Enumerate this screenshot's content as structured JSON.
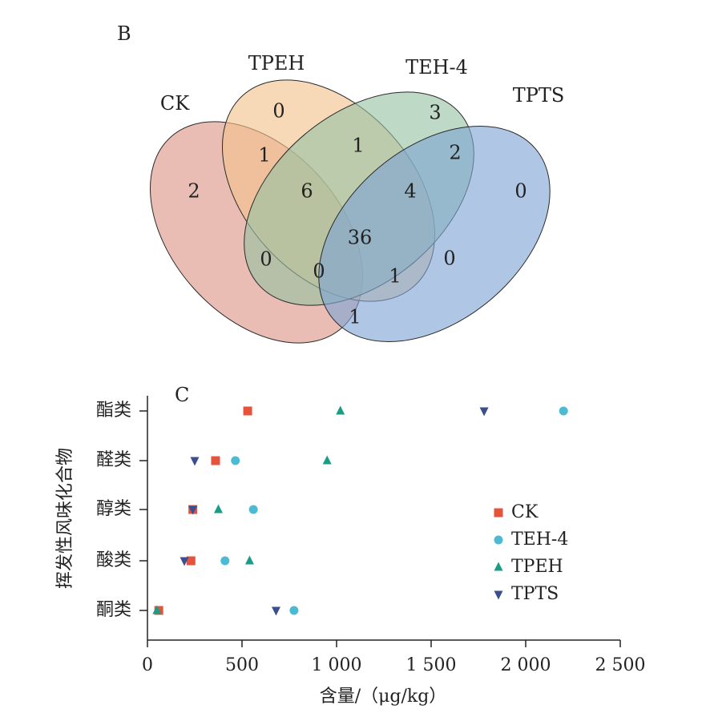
{
  "chart_data": [
    {
      "type": "venn",
      "panel_label": "B",
      "sets": [
        {
          "name": "CK",
          "color": "#dc9486"
        },
        {
          "name": "TPEH",
          "color": "#f2c28c"
        },
        {
          "name": "TEH-4",
          "color": "#96c1a3"
        },
        {
          "name": "TPTS",
          "color": "#7ea4d3"
        }
      ],
      "regions": [
        {
          "sets": [
            "CK"
          ],
          "value": "2"
        },
        {
          "sets": [
            "TPEH"
          ],
          "value": "0"
        },
        {
          "sets": [
            "TEH-4"
          ],
          "value": "3"
        },
        {
          "sets": [
            "TPTS"
          ],
          "value": "0"
        },
        {
          "sets": [
            "CK",
            "TPEH"
          ],
          "value": "1"
        },
        {
          "sets": [
            "TPEH",
            "TEH-4"
          ],
          "value": "1"
        },
        {
          "sets": [
            "TEH-4",
            "TPTS"
          ],
          "value": "2"
        },
        {
          "sets": [
            "CK",
            "TEH-4"
          ],
          "value": "0"
        },
        {
          "sets": [
            "TPEH",
            "TPTS"
          ],
          "value": "0"
        },
        {
          "sets": [
            "CK",
            "TPTS"
          ],
          "value": "1"
        },
        {
          "sets": [
            "CK",
            "TPEH",
            "TEH-4"
          ],
          "value": "6"
        },
        {
          "sets": [
            "TPEH",
            "TEH-4",
            "TPTS"
          ],
          "value": "4"
        },
        {
          "sets": [
            "CK",
            "TEH-4",
            "TPTS"
          ],
          "value": "0"
        },
        {
          "sets": [
            "CK",
            "TPEH",
            "TPTS"
          ],
          "value": "1"
        },
        {
          "sets": [
            "CK",
            "TPEH",
            "TEH-4",
            "TPTS"
          ],
          "value": "36"
        }
      ]
    },
    {
      "type": "scatter",
      "panel_label": "C",
      "categories": [
        "酮类",
        "酸类",
        "醇类",
        "醛类",
        "酯类"
      ],
      "xlabel": "含量/（μg/kg）",
      "ylabel": "挥发性风味化合物",
      "xlim": [
        0,
        2500
      ],
      "xticks": [
        0,
        500,
        1000,
        1500,
        2000,
        2500
      ],
      "xtick_labels": [
        "0",
        "500",
        "1 000",
        "1 500",
        "2 000",
        "2 500"
      ],
      "legend_position": "right",
      "series": [
        {
          "name": "CK",
          "marker": "square",
          "color": "#e5533d",
          "points": [
            {
              "category": "酯类",
              "x": 530
            },
            {
              "category": "醛类",
              "x": 360
            },
            {
              "category": "醇类",
              "x": 240
            },
            {
              "category": "酸类",
              "x": 230
            },
            {
              "category": "酮类",
              "x": 60
            }
          ]
        },
        {
          "name": "TEH-4",
          "marker": "circle",
          "color": "#4cbad3",
          "points": [
            {
              "category": "酯类",
              "x": 2200
            },
            {
              "category": "醛类",
              "x": 465
            },
            {
              "category": "醇类",
              "x": 560
            },
            {
              "category": "酸类",
              "x": 410
            },
            {
              "category": "酮类",
              "x": 775
            }
          ]
        },
        {
          "name": "TPEH",
          "marker": "triangle-up",
          "color": "#1a9c85",
          "points": [
            {
              "category": "酯类",
              "x": 1020
            },
            {
              "category": "醛类",
              "x": 950
            },
            {
              "category": "醇类",
              "x": 375
            },
            {
              "category": "酸类",
              "x": 540
            },
            {
              "category": "酮类",
              "x": 50
            }
          ]
        },
        {
          "name": "TPTS",
          "marker": "triangle-down",
          "color": "#3a4f8c",
          "points": [
            {
              "category": "酯类",
              "x": 1780
            },
            {
              "category": "醛类",
              "x": 250
            },
            {
              "category": "醇类",
              "x": 240
            },
            {
              "category": "酸类",
              "x": 195
            },
            {
              "category": "酮类",
              "x": 680
            }
          ]
        }
      ]
    }
  ]
}
